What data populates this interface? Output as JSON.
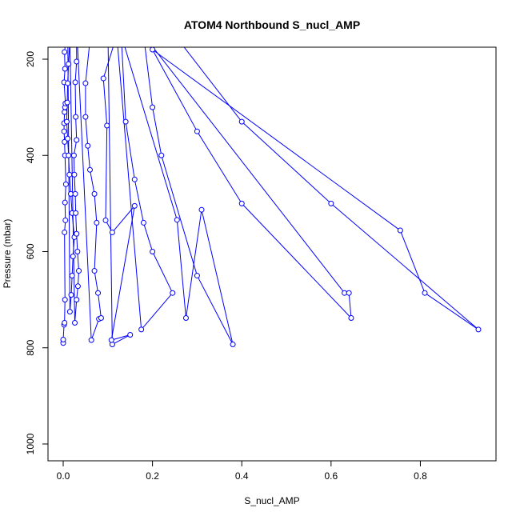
{
  "chart_data": {
    "type": "scatter",
    "title": "ATOM4 Northbound S_nucl_AMP",
    "xlabel": "S_nucl_AMP",
    "ylabel": "Pressure (mbar)",
    "xlim": [
      0,
      0.93
    ],
    "ylim": [
      1030,
      180
    ],
    "y_reversed": true,
    "x_ticks": [
      "0.0",
      "0.2",
      "0.4",
      "0.6",
      "0.8"
    ],
    "x_tick_values": [
      0,
      0.2,
      0.4,
      0.6,
      0.8
    ],
    "y_ticks": [
      "200",
      "400",
      "600",
      "800",
      "1000"
    ],
    "y_tick_values": [
      200,
      400,
      600,
      800,
      1000
    ],
    "series_color": "#0000ff",
    "connect_points": true,
    "series": [
      {
        "points": [
          [
            0.0,
            790
          ],
          [
            0.0,
            783
          ],
          [
            0.002,
            752
          ],
          [
            0.003,
            748
          ],
          [
            0.004,
            700
          ],
          [
            0.003,
            560
          ],
          [
            0.005,
            535
          ],
          [
            0.004,
            498
          ],
          [
            0.006,
            460
          ],
          [
            0.004,
            400
          ],
          [
            0.003,
            372
          ],
          [
            0.002,
            350
          ],
          [
            0.002,
            333
          ],
          [
            0.003,
            310
          ],
          [
            0.004,
            300
          ],
          [
            0.005,
            292
          ],
          [
            0.002,
            248
          ],
          [
            0.004,
            220
          ],
          [
            0.003,
            185
          ],
          [
            0.01,
            120
          ],
          [
            0.015,
            725
          ],
          [
            0.018,
            690
          ],
          [
            0.02,
            650
          ],
          [
            0.022,
            610
          ],
          [
            0.025,
            570
          ],
          [
            0.02,
            520
          ],
          [
            0.017,
            480
          ],
          [
            0.014,
            440
          ],
          [
            0.012,
            400
          ],
          [
            0.01,
            365
          ],
          [
            0.008,
            330
          ],
          [
            0.009,
            290
          ],
          [
            0.01,
            250
          ],
          [
            0.012,
            210
          ],
          [
            0.015,
            160
          ],
          [
            0.026,
            748
          ],
          [
            0.03,
            700
          ],
          [
            0.033,
            672
          ],
          [
            0.035,
            640
          ],
          [
            0.032,
            600
          ],
          [
            0.03,
            563
          ],
          [
            0.028,
            520
          ],
          [
            0.027,
            480
          ],
          [
            0.025,
            440
          ],
          [
            0.024,
            400
          ],
          [
            0.03,
            368
          ],
          [
            0.028,
            320
          ],
          [
            0.027,
            248
          ],
          [
            0.03,
            205
          ],
          [
            0.03,
            130
          ],
          [
            0.063,
            784
          ],
          [
            0.08,
            740
          ],
          [
            0.085,
            738
          ],
          [
            0.078,
            686
          ],
          [
            0.07,
            640
          ],
          [
            0.075,
            540
          ],
          [
            0.07,
            480
          ],
          [
            0.06,
            430
          ],
          [
            0.055,
            380
          ],
          [
            0.05,
            320
          ],
          [
            0.05,
            250
          ],
          [
            0.06,
            160
          ],
          [
            0.1,
            130
          ],
          [
            0.11,
            793
          ],
          [
            0.15,
            773
          ],
          [
            0.108,
            784
          ],
          [
            0.16,
            505
          ],
          [
            0.11,
            560
          ],
          [
            0.095,
            535
          ],
          [
            0.098,
            338
          ],
          [
            0.09,
            240
          ],
          [
            0.12,
            150
          ],
          [
            0.175,
            762
          ],
          [
            0.245,
            686
          ],
          [
            0.2,
            600
          ],
          [
            0.18,
            540
          ],
          [
            0.16,
            450
          ],
          [
            0.14,
            330
          ],
          [
            0.13,
            150
          ],
          [
            0.255,
            534
          ],
          [
            0.275,
            738
          ],
          [
            0.31,
            513
          ],
          [
            0.38,
            793
          ],
          [
            0.3,
            650
          ],
          [
            0.22,
            400
          ],
          [
            0.2,
            300
          ],
          [
            0.18,
            150
          ],
          [
            0.63,
            686
          ],
          [
            0.64,
            686
          ],
          [
            0.645,
            738
          ],
          [
            0.4,
            500
          ],
          [
            0.3,
            350
          ],
          [
            0.2,
            180
          ],
          [
            0.755,
            556
          ],
          [
            0.81,
            686
          ],
          [
            0.93,
            762
          ],
          [
            0.6,
            500
          ],
          [
            0.4,
            330
          ],
          [
            0.25,
            150
          ]
        ]
      }
    ]
  }
}
